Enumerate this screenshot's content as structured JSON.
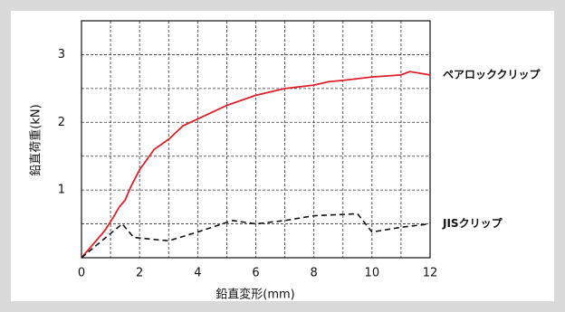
{
  "chart_data": {
    "type": "line",
    "xlabel": "鉛直変形(mm)",
    "ylabel": "鉛直荷重(kN)",
    "xlim": [
      0,
      12
    ],
    "xticks": [
      0,
      2,
      4,
      6,
      8,
      10,
      12
    ],
    "ylim": [
      0,
      3.5
    ],
    "yticks": [
      1,
      2,
      3
    ],
    "grid": true,
    "xminor": [
      1,
      3,
      5,
      7,
      9,
      11
    ],
    "yminor": [
      0.5,
      1.5,
      2.5,
      3.5
    ],
    "legend": "line-end",
    "series": [
      {
        "name": "ペアロッククリップ",
        "color": "#e0202a",
        "dash": false,
        "x": [
          0,
          0.5,
          0.8,
          1.1,
          1.3,
          1.5,
          1.7,
          2,
          2.5,
          3,
          3.5,
          4,
          5,
          6,
          7,
          8,
          8.5,
          9,
          10,
          11,
          11.3,
          12
        ],
        "values": [
          0,
          0.25,
          0.4,
          0.6,
          0.75,
          0.85,
          1.05,
          1.3,
          1.6,
          1.75,
          1.95,
          2.05,
          2.25,
          2.4,
          2.5,
          2.55,
          2.6,
          2.62,
          2.67,
          2.7,
          2.75,
          2.7
        ]
      },
      {
        "name": "JISクリップ",
        "color": "#111111",
        "dash": true,
        "x": [
          0,
          1.4,
          1.8,
          3,
          4,
          5.2,
          6,
          7,
          8,
          9.5,
          10,
          11,
          12
        ],
        "values": [
          0,
          0.5,
          0.3,
          0.25,
          0.38,
          0.55,
          0.5,
          0.55,
          0.62,
          0.65,
          0.38,
          0.45,
          0.5
        ]
      }
    ]
  }
}
